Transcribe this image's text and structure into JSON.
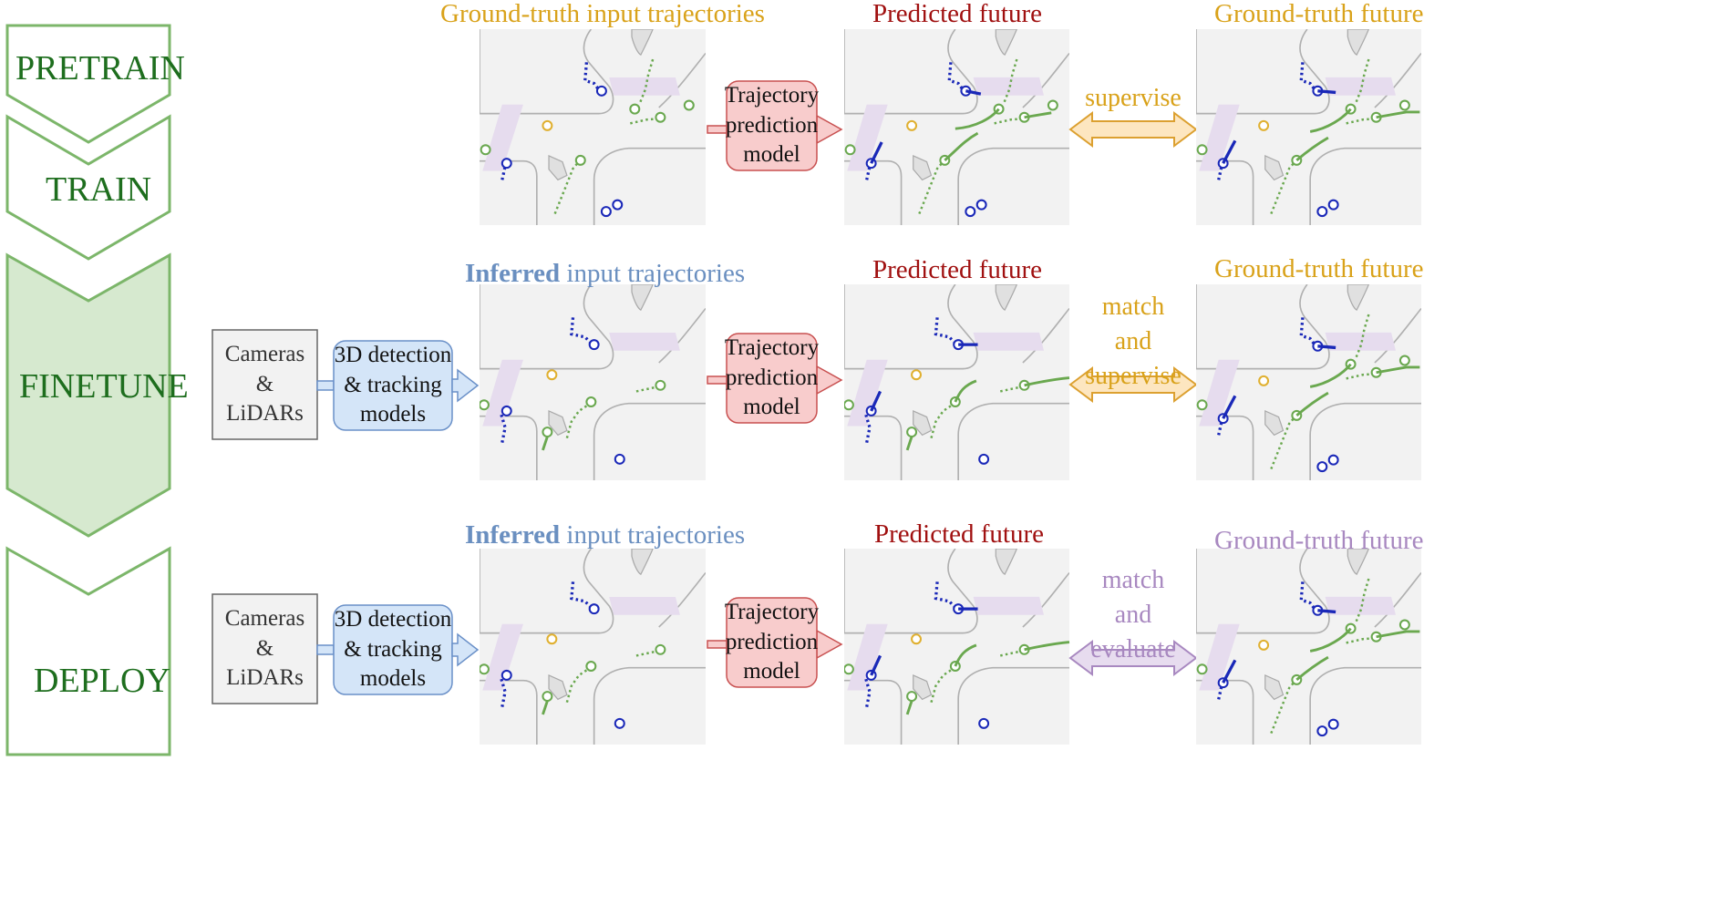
{
  "stages": [
    {
      "id": "pretrain",
      "label": "PRETRAIN"
    },
    {
      "id": "train",
      "label": "TRAIN"
    },
    {
      "id": "finetune",
      "label": "FINETUNE"
    },
    {
      "id": "deploy",
      "label": "DEPLOY"
    }
  ],
  "rows": [
    {
      "input_header": {
        "bold": "",
        "text": "Ground-truth input trajectories"
      },
      "predicted_header": "Predicted future",
      "gt_header": "Ground-truth future",
      "relation": [
        "supervise"
      ],
      "model_lines": [
        "Trajectory",
        "prediction",
        "model"
      ]
    },
    {
      "sensors_lines": [
        "Cameras",
        "&",
        "LiDARs"
      ],
      "detection_lines": [
        "3D detection",
        "& tracking",
        "models"
      ],
      "input_header": {
        "bold": "Inferred",
        "text": " input trajectories"
      },
      "predicted_header": "Predicted future",
      "gt_header": "Ground-truth future",
      "relation": [
        "match",
        "and",
        "supervise"
      ],
      "model_lines": [
        "Trajectory",
        "prediction",
        "model"
      ]
    },
    {
      "sensors_lines": [
        "Cameras",
        "&",
        "LiDARs"
      ],
      "detection_lines": [
        "3D detection",
        "& tracking",
        "models"
      ],
      "input_header": {
        "bold": "Inferred",
        "text": " input trajectories"
      },
      "predicted_header": "Predicted future",
      "gt_header": "Ground-truth future",
      "relation": [
        "match",
        "and",
        "evaluate"
      ],
      "model_lines": [
        "Trajectory",
        "prediction",
        "model"
      ]
    }
  ],
  "colors": {
    "stage_text": "#1e6e1e",
    "stage_border": "#7cb66a",
    "finetune_fill": "#d6e9cf",
    "gt_header": "#d9a21a",
    "predicted_header": "#a01010",
    "inferred_header": "#6a8fc0",
    "deploy_gt_header": "#a888c0",
    "agent_blue": "#1a28b8",
    "agent_green": "#6aa84f",
    "agent_yellow": "#e0b030",
    "map_bg": "#f2f2f2",
    "crosswalk": "#e6dcee",
    "model_fill": "#f8cccc",
    "model_border": "#c85050",
    "detection_fill": "#d4e5f8",
    "detection_border": "#6a90c8",
    "sensor_fill": "#f2f2f2",
    "sensor_border": "#666666",
    "arrow_supervise_fill": "#fde6c0",
    "arrow_supervise_stroke": "#dca030",
    "arrow_evaluate_fill": "#e7dcef",
    "arrow_evaluate_stroke": "#a888c0"
  }
}
